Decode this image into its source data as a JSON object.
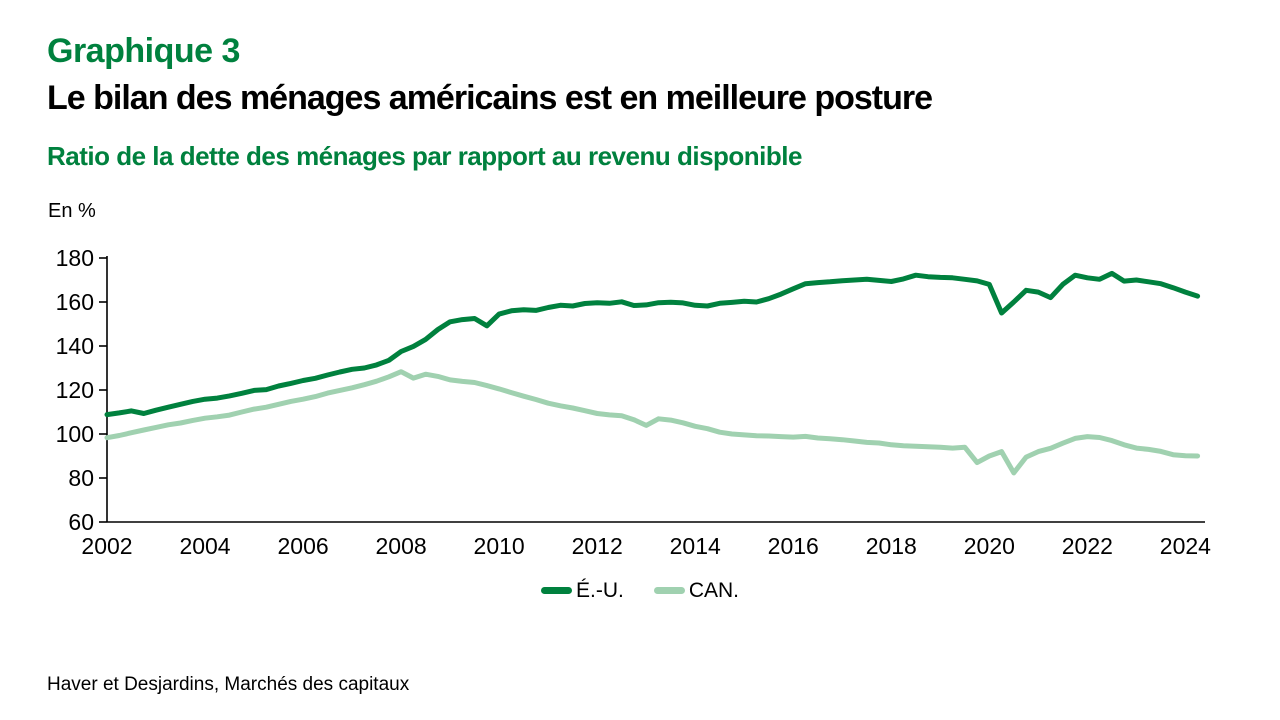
{
  "header": {
    "kicker": "Graphique 3",
    "title": "Le bilan des ménages américains est en meilleure posture",
    "subtitle": "Ratio de la dette des ménages par rapport au revenu disponible"
  },
  "colors": {
    "green_dark": "#00813e",
    "green_light": "#a0d1b0",
    "axis": "#000000",
    "text": "#000000"
  },
  "footer": {
    "source": "Haver et Desjardins, Marchés des capitaux"
  },
  "chart_data": {
    "type": "line",
    "title": "Ratio de la dette des ménages par rapport au revenu disponible",
    "xlabel": "",
    "ylabel": "En %",
    "ylim": [
      60,
      180
    ],
    "xlim": [
      2002,
      2024.4
    ],
    "yticks": [
      60,
      80,
      100,
      120,
      140,
      160,
      180
    ],
    "xticks": [
      2002,
      2004,
      2006,
      2008,
      2010,
      2012,
      2014,
      2016,
      2018,
      2020,
      2022,
      2024
    ],
    "grid": false,
    "legend_position": "bottom-center",
    "x_years": [
      2002,
      2002.25,
      2002.5,
      2002.75,
      2003,
      2003.25,
      2003.5,
      2003.75,
      2004,
      2004.25,
      2004.5,
      2004.75,
      2005,
      2005.25,
      2005.5,
      2005.75,
      2006,
      2006.25,
      2006.5,
      2006.75,
      2007,
      2007.25,
      2007.5,
      2007.75,
      2008,
      2008.25,
      2008.5,
      2008.75,
      2009,
      2009.25,
      2009.5,
      2009.75,
      2010,
      2010.25,
      2010.5,
      2010.75,
      2011,
      2011.25,
      2011.5,
      2011.75,
      2012,
      2012.25,
      2012.5,
      2012.75,
      2013,
      2013.25,
      2013.5,
      2013.75,
      2014,
      2014.25,
      2014.5,
      2014.75,
      2015,
      2015.25,
      2015.5,
      2015.75,
      2016,
      2016.25,
      2016.5,
      2016.75,
      2017,
      2017.25,
      2017.5,
      2017.75,
      2018,
      2018.25,
      2018.5,
      2018.75,
      2019,
      2019.25,
      2019.5,
      2019.75,
      2020,
      2020.25,
      2020.5,
      2020.75,
      2021,
      2021.25,
      2021.5,
      2021.75,
      2022,
      2022.25,
      2022.5,
      2022.75,
      2023,
      2023.25,
      2023.5,
      2023.75,
      2024,
      2024.25
    ],
    "series": [
      {
        "name": "É.-U.",
        "color_key": "green_dark",
        "values": [
          108.8,
          109.6,
          110.5,
          109.3,
          110.8,
          112.2,
          113.5,
          114.8,
          115.8,
          116.3,
          117.3,
          118.5,
          119.8,
          120.2,
          121.8,
          123,
          124.3,
          125.3,
          126.8,
          128.2,
          129.4,
          130,
          131.4,
          133.5,
          137.5,
          139.8,
          143,
          147.5,
          151,
          152,
          152.5,
          149.2,
          154.5,
          156,
          156.5,
          156.2,
          157.5,
          158.5,
          158.2,
          159.3,
          159.7,
          159.4,
          160.1,
          158.4,
          158.7,
          159.7,
          159.9,
          159.6,
          158.5,
          158.2,
          159.4,
          159.8,
          160.3,
          160,
          161.5,
          163.6,
          166,
          168.3,
          168.8,
          169.2,
          169.7,
          170,
          170.3,
          169.8,
          169.3,
          170.5,
          172.2,
          171.5,
          171.2,
          171,
          170.3,
          169.6,
          168,
          155,
          160,
          165.3,
          164.5,
          162,
          168,
          172.2,
          171,
          170.3,
          173,
          169.5,
          170,
          169.2,
          168.3,
          166.5,
          164.5,
          162.7
        ]
      },
      {
        "name": "CAN.",
        "color_key": "green_light",
        "values": [
          98.3,
          99.3,
          100.6,
          101.8,
          103,
          104.2,
          105,
          106.2,
          107.2,
          107.8,
          108.6,
          110,
          111.3,
          112.2,
          113.5,
          114.8,
          115.8,
          117,
          118.6,
          119.8,
          121,
          122.4,
          124,
          126,
          128.3,
          125.4,
          127.2,
          126.2,
          124.6,
          123.9,
          123.4,
          122,
          120.5,
          118.8,
          117.2,
          115.7,
          114,
          112.8,
          111.8,
          110.6,
          109.3,
          108.7,
          108.3,
          106.5,
          103.9,
          106.9,
          106.3,
          105.1,
          103.5,
          102.4,
          100.8,
          100,
          99.6,
          99.2,
          99.1,
          98.8,
          98.6,
          98.9,
          98.2,
          97.8,
          97.4,
          96.8,
          96.2,
          95.9,
          95.1,
          94.7,
          94.4,
          94.2,
          94,
          93.6,
          94,
          87,
          90,
          92,
          82.3,
          89.5,
          92,
          93.5,
          95.8,
          98,
          98.8,
          98.4,
          97,
          95.1,
          93.6,
          93,
          92.1,
          90.6,
          90.1,
          90
        ]
      }
    ]
  }
}
